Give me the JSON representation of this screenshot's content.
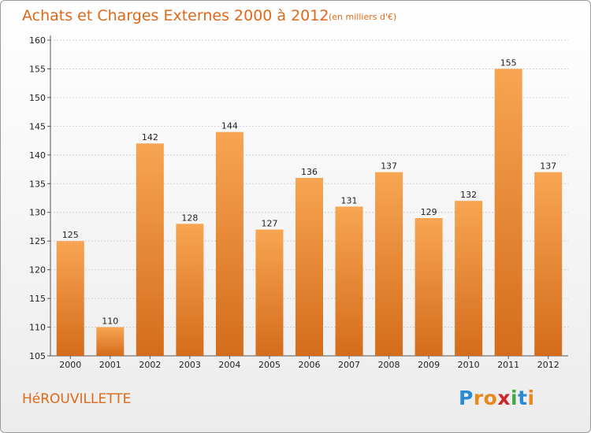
{
  "header": {
    "title": "Achats et Charges Externes 2000 à 2012",
    "subtitle": "(en milliers d'€)"
  },
  "footer": {
    "commune": "HéROUVILLETTE",
    "logo_letters": [
      {
        "char": "P",
        "color": "#2a8ad4"
      },
      {
        "char": "r",
        "color": "#e8891c"
      },
      {
        "char": "o",
        "color": "#e8891c"
      },
      {
        "char": "x",
        "color": "#d0262a"
      },
      {
        "char": "i",
        "color": "#46a548"
      },
      {
        "char": "t",
        "color": "#2a8ad4"
      },
      {
        "char": "i",
        "color": "#e8891c"
      }
    ]
  },
  "colors": {
    "bar_top": "#f7a552",
    "bar_bottom": "#d46c1b",
    "title": "#e06818",
    "grid": "#cfcfcf"
  },
  "chart_data": {
    "type": "bar",
    "categories": [
      "2000",
      "2001",
      "2002",
      "2003",
      "2004",
      "2005",
      "2006",
      "2007",
      "2008",
      "2009",
      "2010",
      "2011",
      "2012"
    ],
    "values": [
      125,
      110,
      142,
      128,
      144,
      127,
      136,
      131,
      137,
      129,
      132,
      155,
      137
    ],
    "ylim": [
      105,
      160
    ],
    "yticks": [
      105,
      110,
      115,
      120,
      125,
      130,
      135,
      140,
      145,
      150,
      155,
      160
    ],
    "grid": true,
    "data_labels": true
  }
}
